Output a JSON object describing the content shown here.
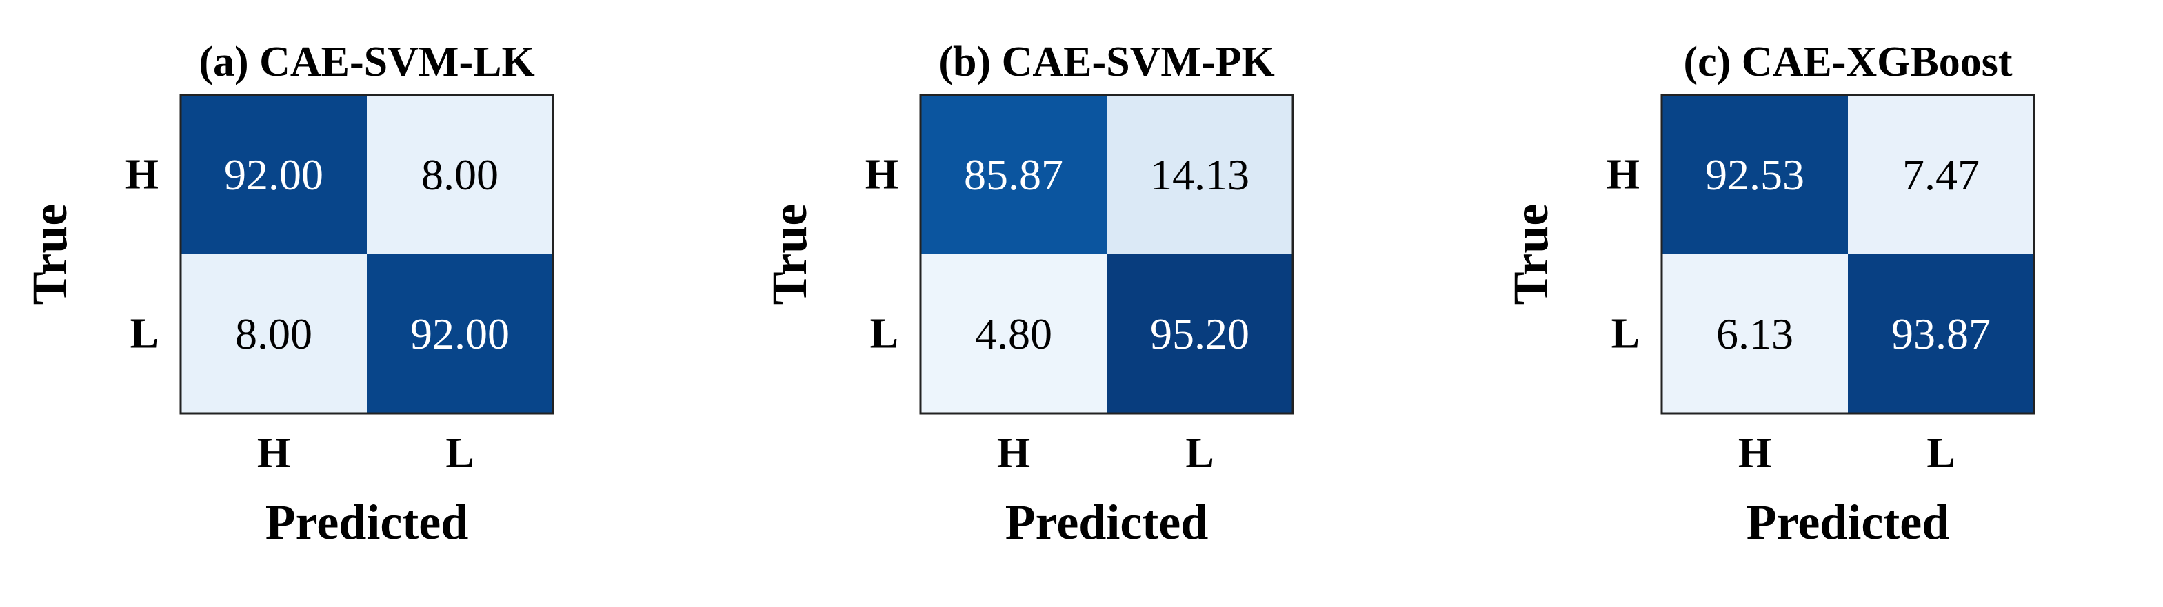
{
  "chart_data": [
    {
      "type": "heatmap",
      "title": "(a) CAE-SVM-LK",
      "xlabel": "Predicted",
      "ylabel": "True",
      "x_ticks": [
        "H",
        "L"
      ],
      "y_ticks": [
        "H",
        "L"
      ],
      "values": [
        [
          92.0,
          8.0
        ],
        [
          8.0,
          92.0
        ]
      ],
      "value_labels": [
        [
          "92.00",
          "8.00"
        ],
        [
          "8.00",
          "92.00"
        ]
      ],
      "colormap": "Blues",
      "color_range": [
        0,
        100
      ],
      "colorbar": false,
      "grid": false
    },
    {
      "type": "heatmap",
      "title": "(b) CAE-SVM-PK",
      "xlabel": "Predicted",
      "ylabel": "True",
      "x_ticks": [
        "H",
        "L"
      ],
      "y_ticks": [
        "H",
        "L"
      ],
      "values": [
        [
          85.87,
          14.13
        ],
        [
          4.8,
          95.2
        ]
      ],
      "value_labels": [
        [
          "85.87",
          "14.13"
        ],
        [
          "4.80",
          "95.20"
        ]
      ],
      "colormap": "Blues",
      "color_range": [
        0,
        100
      ],
      "colorbar": false,
      "grid": false
    },
    {
      "type": "heatmap",
      "title": "(c) CAE-XGBoost",
      "xlabel": "Predicted",
      "ylabel": "True",
      "x_ticks": [
        "H",
        "L"
      ],
      "y_ticks": [
        "H",
        "L"
      ],
      "values": [
        [
          92.53,
          7.47
        ],
        [
          6.13,
          93.87
        ]
      ],
      "value_labels": [
        [
          "92.53",
          "7.47"
        ],
        [
          "6.13",
          "93.87"
        ]
      ],
      "colormap": "Blues",
      "color_range": [
        0,
        100
      ],
      "colorbar": false,
      "grid": false
    }
  ]
}
